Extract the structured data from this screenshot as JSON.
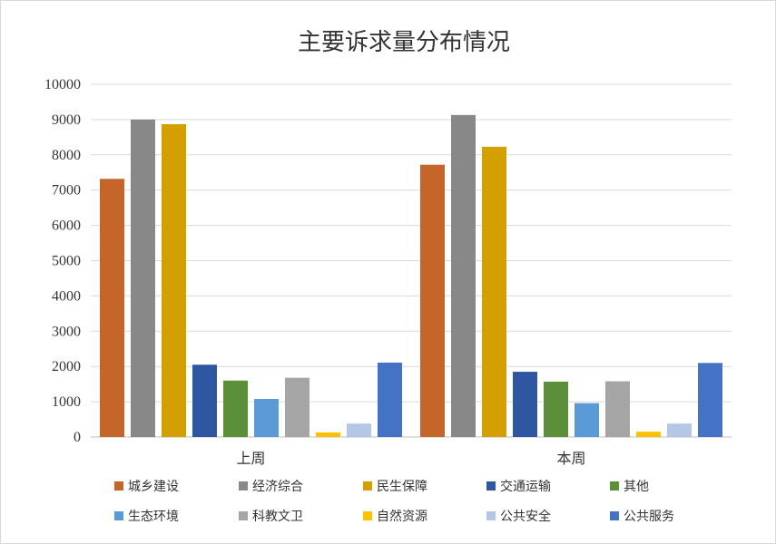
{
  "chart_data": {
    "type": "bar",
    "title": "主要诉求量分布情况",
    "categories": [
      "上周",
      "本周"
    ],
    "ylim": [
      0,
      10000
    ],
    "yticks": [
      0,
      1000,
      2000,
      3000,
      4000,
      5000,
      6000,
      7000,
      8000,
      9000,
      10000
    ],
    "grid": true,
    "legend_position": "bottom",
    "series": [
      {
        "name": "城乡建设",
        "color": "#c5652a",
        "values": [
          7320,
          7720
        ]
      },
      {
        "name": "经济综合",
        "color": "#888888",
        "values": [
          9000,
          9130
        ]
      },
      {
        "name": "民生保障",
        "color": "#d4a000",
        "values": [
          8870,
          8230
        ]
      },
      {
        "name": "交通运输",
        "color": "#2f56a0",
        "values": [
          2050,
          1850
        ]
      },
      {
        "name": "其他",
        "color": "#5b8f3a",
        "values": [
          1600,
          1570
        ]
      },
      {
        "name": "生态环境",
        "color": "#5b9bd5",
        "values": [
          1080,
          960
        ]
      },
      {
        "name": "科教文卫",
        "color": "#a5a5a5",
        "values": [
          1680,
          1580
        ]
      },
      {
        "name": "自然资源",
        "color": "#ffc000",
        "values": [
          130,
          150
        ]
      },
      {
        "name": "公共安全",
        "color": "#b4c7e7",
        "values": [
          380,
          380
        ]
      },
      {
        "name": "公共服务",
        "color": "#4472c4",
        "values": [
          2110,
          2100
        ]
      }
    ]
  }
}
